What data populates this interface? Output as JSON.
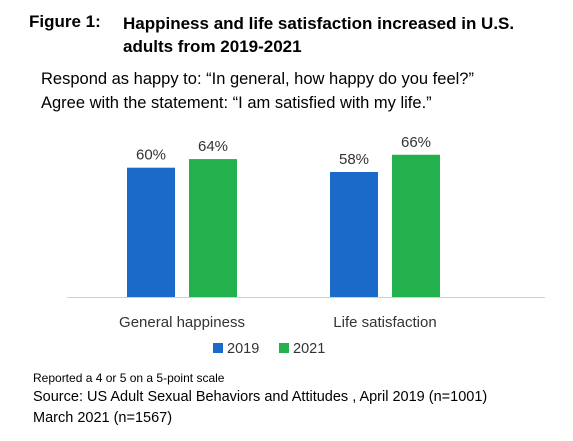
{
  "figure_label": "Figure 1:",
  "chart_data": {
    "type": "bar",
    "title": "Happiness and life satisfaction increased in U.S. adults from 2019-2021",
    "subtitle_lines": [
      "Respond as happy to: “In general, how happy do you feel?”",
      "Agree with the statement: “I am satisfied with my life.”"
    ],
    "categories": [
      "General happiness",
      "Life satisfaction"
    ],
    "series": [
      {
        "name": "2019",
        "values": [
          60,
          58
        ],
        "color": "#1b6ac9"
      },
      {
        "name": "2021",
        "values": [
          64,
          66
        ],
        "color": "#22b14c"
      }
    ],
    "value_suffix": "%",
    "ylim": [
      0,
      100
    ],
    "grid": false,
    "legend_position": "bottom"
  },
  "footnotes": {
    "note": "Reported a 4 or 5 on a 5-point scale",
    "source_line1": "Source: US Adult Sexual Behaviors and Attitudes , April 2019 (n=1001)",
    "source_line2": "March 2021 (n=1567)"
  }
}
